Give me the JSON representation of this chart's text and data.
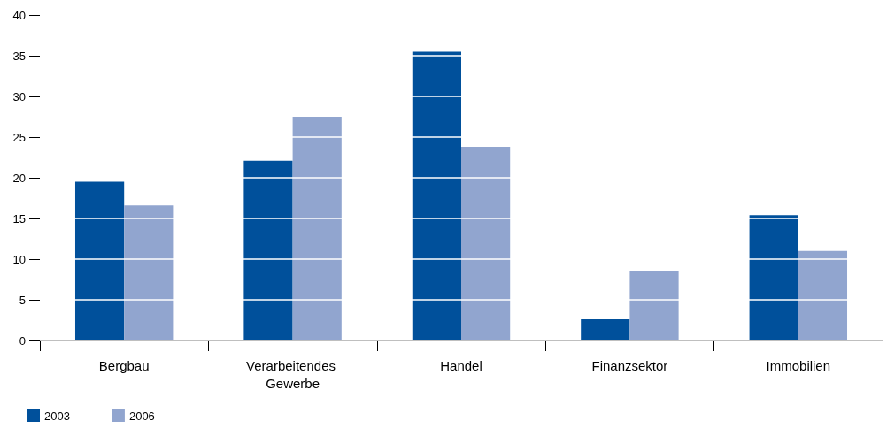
{
  "chart_data": {
    "type": "bar",
    "categories": [
      "Bergbau",
      "Verarbeitendes Gewerbe",
      "Handel",
      "Finanzsektor",
      "Immobilien"
    ],
    "series": [
      {
        "name": "2003",
        "color": "#00509b",
        "values": [
          19.5,
          22.1,
          35.5,
          2.6,
          15.4
        ]
      },
      {
        "name": "2006",
        "color": "#91a5cf",
        "values": [
          16.6,
          27.5,
          23.8,
          8.5,
          11.0
        ]
      }
    ],
    "ylim": [
      0,
      40
    ],
    "yticks": [
      0,
      5,
      10,
      15,
      20,
      25,
      30,
      35,
      40
    ],
    "grid": "y",
    "legend": "bottom left"
  }
}
